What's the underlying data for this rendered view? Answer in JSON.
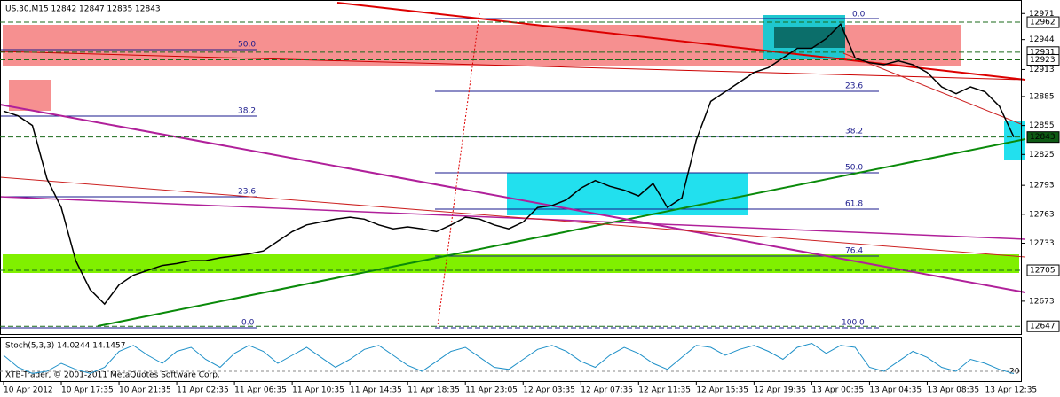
{
  "chart_data": {
    "type": "line",
    "title": "US.30,M15 12842 12847 12835 12843",
    "categories": [
      "10 Apr 2012",
      null,
      null,
      null,
      "10 Apr 17:35",
      null,
      null,
      null,
      "10 Apr 21:35",
      null,
      null,
      null,
      "11 Apr 02:35",
      null,
      null,
      null,
      "11 Apr 06:35",
      null,
      null,
      null,
      "11 Apr 10:35",
      null,
      null,
      null,
      "11 Apr 14:35",
      null,
      null,
      null,
      "11 Apr 18:35",
      null,
      null,
      null,
      "11 Apr 23:05",
      null,
      null,
      null,
      "12 Apr 03:35",
      null,
      null,
      null,
      "12 Apr 07:35",
      null,
      null,
      null,
      "12 Apr 11:35",
      null,
      null,
      null,
      "12 Apr 15:35",
      null,
      null,
      null,
      "12 Apr 19:35",
      null,
      null,
      null,
      "13 Apr 00:35",
      null,
      null,
      null,
      "13 Apr 04:35",
      null,
      null,
      null,
      "13 Apr 08:35",
      null,
      null,
      null,
      "13 Apr 12:35",
      null,
      null
    ],
    "series": [
      {
        "name": "US.30",
        "color": "#000000",
        "values": [
          12870,
          12865,
          12855,
          12800,
          12770,
          12715,
          12685,
          12670,
          12690,
          12700,
          12705,
          12710,
          12712,
          12715,
          12715,
          12718,
          12720,
          12722,
          12725,
          12735,
          12745,
          12752,
          12755,
          12758,
          12760,
          12758,
          12752,
          12748,
          12750,
          12748,
          12745,
          12752,
          12760,
          12758,
          12752,
          12748,
          12755,
          12770,
          12772,
          12778,
          12790,
          12798,
          12792,
          12788,
          12782,
          12795,
          12770,
          12780,
          12840,
          12880,
          12890,
          12900,
          12910,
          12915,
          12925,
          12935,
          12935,
          12945,
          12960,
          12925,
          12920,
          12918,
          12922,
          12918,
          12910,
          12895,
          12888,
          12895,
          12890,
          12875,
          12843
        ]
      }
    ],
    "ylim": [
      12638,
      12985
    ],
    "yticks": [
      12971,
      12944,
      12913,
      12885,
      12855,
      12825,
      12793,
      12763,
      12733,
      12673
    ],
    "price_levels": [
      12962,
      12931,
      12923,
      12843,
      12705,
      12647
    ],
    "annotations": [
      "0.0",
      "50.0",
      "38.2",
      "23.6",
      "38.2",
      "50.0",
      "61.8",
      "23.6",
      "76.4",
      "0.0",
      "100.0"
    ],
    "copyright": "XTB-Trader, © 2001-2011 MetaQuotes Software Corp.",
    "indicator": {
      "title": "Stoch(5,3,3) 14.0244 14.1457",
      "color": "#1e90c8",
      "ylim": [
        0,
        100
      ],
      "yticks": [
        20
      ],
      "values": [
        60,
        30,
        15,
        20,
        40,
        25,
        15,
        30,
        70,
        85,
        60,
        40,
        70,
        80,
        50,
        30,
        65,
        85,
        70,
        40,
        60,
        80,
        55,
        30,
        50,
        75,
        85,
        60,
        35,
        20,
        45,
        70,
        80,
        55,
        30,
        25,
        50,
        75,
        85,
        70,
        45,
        30,
        60,
        80,
        65,
        40,
        25,
        55,
        85,
        80,
        60,
        75,
        85,
        70,
        50,
        80,
        90,
        65,
        85,
        80,
        30,
        20,
        45,
        70,
        55,
        30,
        20,
        50,
        40,
        25,
        14
      ]
    }
  }
}
